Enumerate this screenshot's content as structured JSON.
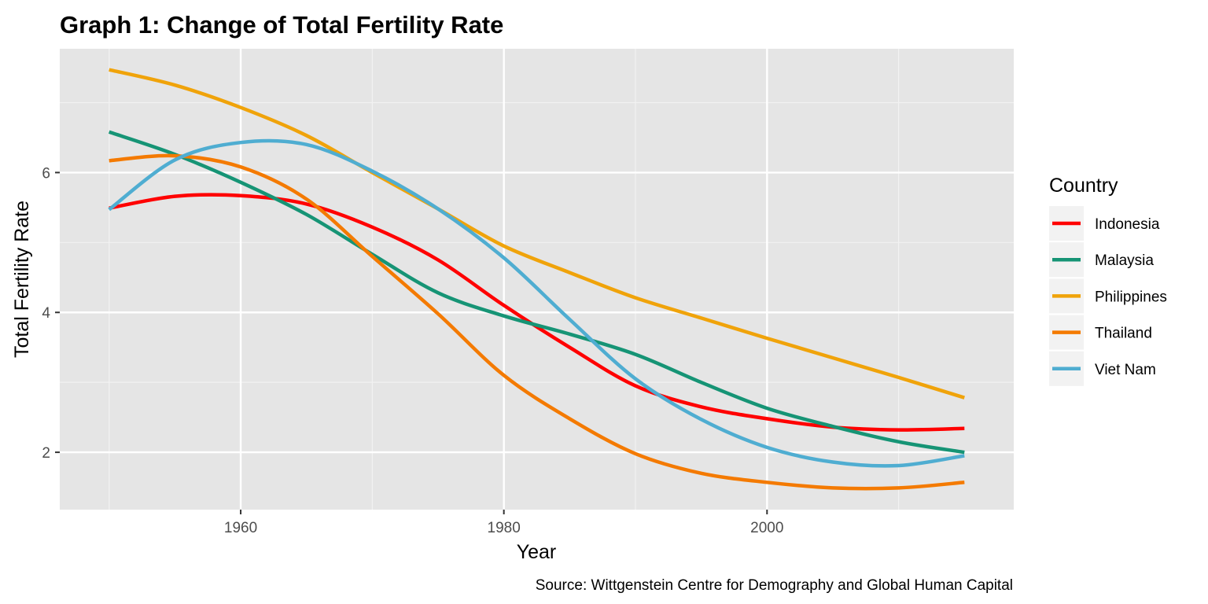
{
  "chart_data": {
    "type": "line",
    "title": "Graph 1: Change of Total Fertility Rate",
    "xlabel": "Year",
    "ylabel": "Total Fertility Rate",
    "caption": "Source: Wittgenstein Centre for Demography and Global Human Capital",
    "legend_title": "Country",
    "legend_position": "right",
    "grid": true,
    "xlim": [
      1946.25,
      2018.75
    ],
    "ylim": [
      1.18,
      7.77
    ],
    "x_ticks": [
      1960,
      1980,
      2000
    ],
    "y_ticks": [
      2,
      4,
      6
    ],
    "x": [
      1950,
      1955,
      1960,
      1965,
      1970,
      1975,
      1980,
      1985,
      1990,
      1995,
      2000,
      2005,
      2010,
      2015
    ],
    "series": [
      {
        "name": "Indonesia",
        "color": "#ff0000",
        "values": [
          5.49,
          5.66,
          5.67,
          5.55,
          5.22,
          4.75,
          4.1,
          3.5,
          2.95,
          2.65,
          2.48,
          2.36,
          2.32,
          2.34
        ]
      },
      {
        "name": "Malaysia",
        "color": "#169475",
        "values": [
          6.58,
          6.26,
          5.86,
          5.4,
          4.83,
          4.28,
          3.95,
          3.69,
          3.4,
          3.0,
          2.63,
          2.37,
          2.15,
          2.0
        ]
      },
      {
        "name": "Philippines",
        "color": "#f0a30a",
        "values": [
          7.47,
          7.25,
          6.93,
          6.53,
          6.0,
          5.48,
          4.95,
          4.57,
          4.21,
          3.92,
          3.63,
          3.35,
          3.07,
          2.78
        ]
      },
      {
        "name": "Thailand",
        "color": "#f47a00",
        "values": [
          6.17,
          6.24,
          6.08,
          5.62,
          4.8,
          3.98,
          3.1,
          2.48,
          1.98,
          1.7,
          1.57,
          1.49,
          1.49,
          1.57
        ]
      },
      {
        "name": "Viet Nam",
        "color": "#4fadd1",
        "values": [
          5.47,
          6.18,
          6.43,
          6.4,
          6.02,
          5.48,
          4.78,
          3.9,
          3.05,
          2.47,
          2.07,
          1.86,
          1.81,
          1.95
        ]
      }
    ]
  }
}
